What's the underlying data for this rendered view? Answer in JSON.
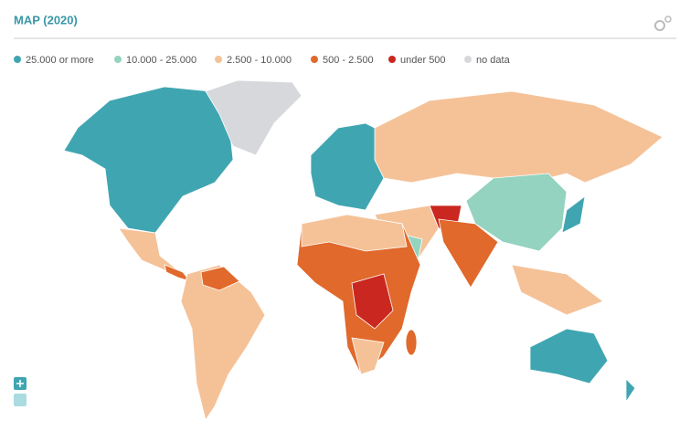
{
  "header": {
    "title": "MAP (2020)"
  },
  "legend": {
    "items": [
      {
        "name": "25.000 or more",
        "color": "#3fa6b1"
      },
      {
        "name": "10.000 - 25.000",
        "color": "#94d3bf"
      },
      {
        "name": "2.500 - 10.000",
        "color": "#f5c298"
      },
      {
        "name": "500 - 2.500",
        "color": "#e0692b"
      },
      {
        "name": "under 500",
        "color": "#c9271f"
      },
      {
        "name": "no data",
        "color": "#d6d8db"
      }
    ]
  }
}
